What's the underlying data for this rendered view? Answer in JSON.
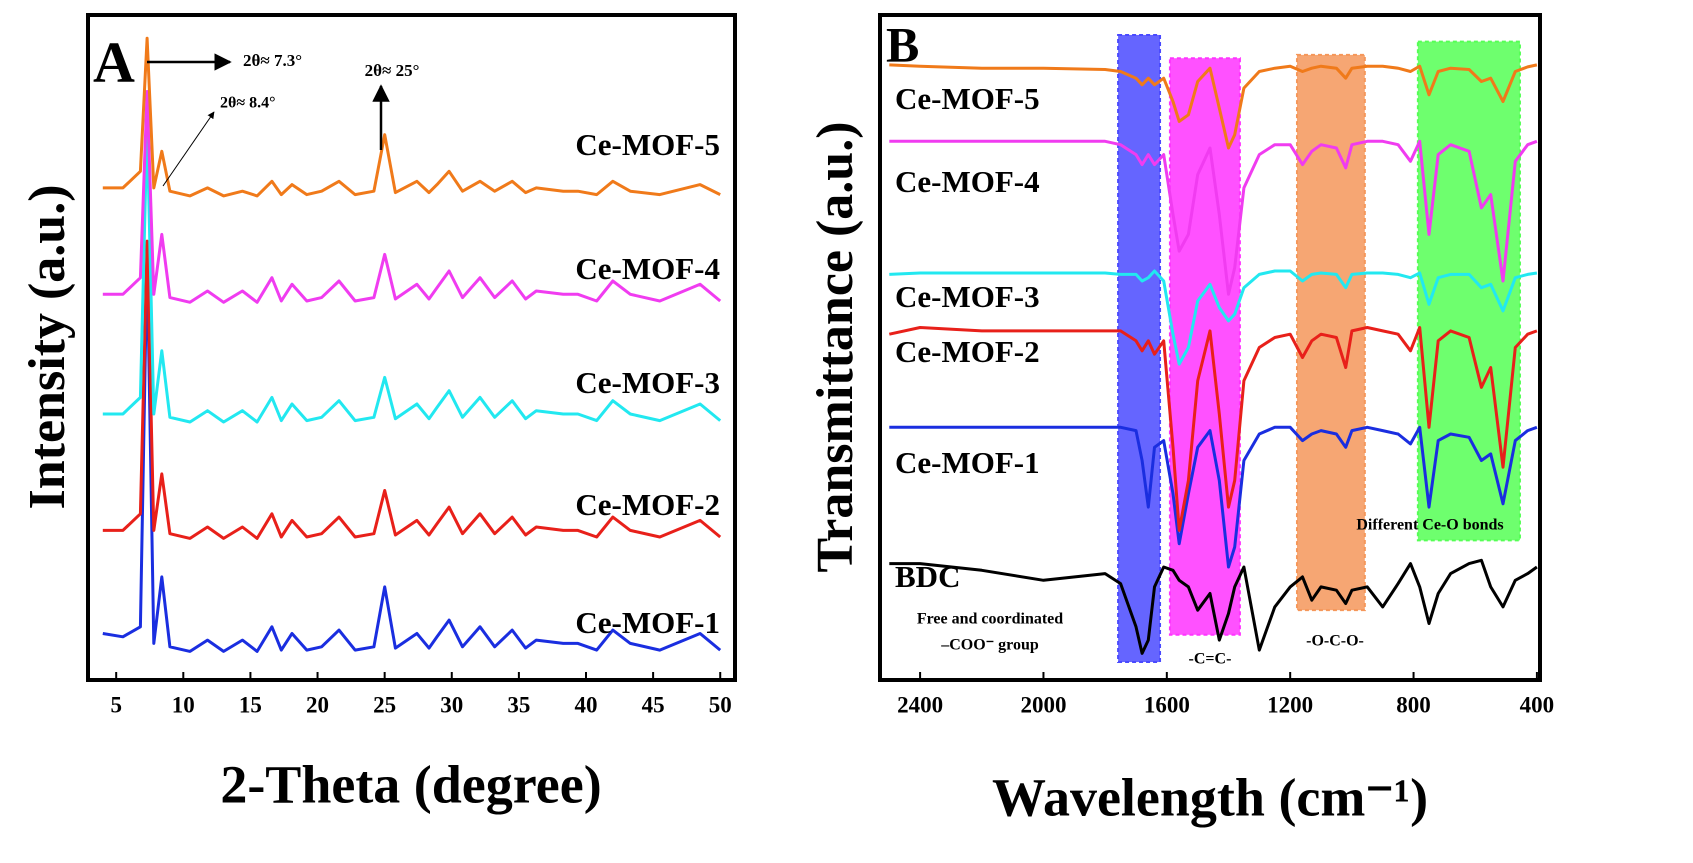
{
  "chart_data": [
    {
      "type": "line",
      "panel_label": "A",
      "x_label": "2-Theta (degree)",
      "y_label": "Intensity (a.u.)",
      "xlim": [
        2.9,
        51.1
      ],
      "xticks": [
        5,
        10,
        15,
        20,
        25,
        30,
        35,
        40,
        45,
        50
      ],
      "ylim": [
        0,
        100
      ],
      "x": [
        4,
        5.5,
        6.8,
        7.3,
        7.8,
        8.4,
        9,
        10.5,
        11.8,
        13,
        14.4,
        15.5,
        16.6,
        17.3,
        18.1,
        19.2,
        20.3,
        21.6,
        22.8,
        24.2,
        25,
        25.8,
        27.4,
        28.3,
        28.9,
        29.8,
        30.8,
        32.1,
        33.2,
        34.5,
        35.5,
        36.3,
        38.3,
        39.4,
        40.8,
        42,
        43.3,
        45.5,
        48.5,
        50
      ],
      "series": [
        {
          "name": "Ce-MOF-1",
          "color": "#1a2ee0",
          "values": [
            7,
            6.5,
            8,
            64,
            5.5,
            15.5,
            5,
            4.3,
            6,
            4.3,
            6,
            4.3,
            8,
            4.5,
            7,
            4.5,
            5,
            7.5,
            4.5,
            5,
            14,
            4.8,
            7,
            4.8,
            6.5,
            9,
            5,
            8,
            5,
            7.5,
            4.8,
            6,
            5.5,
            5.5,
            4.5,
            7.5,
            5.5,
            4.5,
            7,
            4.5
          ]
        },
        {
          "name": "Ce-MOF-2",
          "color": "#e8201a",
          "values": [
            22.5,
            22.5,
            25,
            66,
            22.5,
            31,
            22,
            21.3,
            23,
            21.3,
            23,
            21.3,
            25,
            21.5,
            24,
            21.5,
            22,
            24.5,
            21.5,
            22,
            28.5,
            21.8,
            24,
            21.8,
            23.5,
            26,
            22,
            25,
            22,
            24.5,
            21.8,
            23,
            22.5,
            22.5,
            21.5,
            24.5,
            22.5,
            21.5,
            24,
            21.5
          ]
        },
        {
          "name": "Ce-MOF-3",
          "color": "#22e8f0",
          "values": [
            40,
            40,
            42.5,
            83.5,
            40,
            49.5,
            39.5,
            38.8,
            40.5,
            38.8,
            40.5,
            38.8,
            42.5,
            39,
            41.5,
            39,
            39.5,
            42,
            39,
            39.5,
            45.5,
            39.3,
            41.5,
            39.3,
            41,
            43.5,
            39.5,
            42.5,
            39.5,
            42,
            39.3,
            40.5,
            40,
            40,
            39,
            42,
            40,
            39,
            41.5,
            39
          ]
        },
        {
          "name": "Ce-MOF-4",
          "color": "#f03cf0",
          "values": [
            58,
            58,
            60.5,
            88.5,
            58,
            67,
            57.5,
            56.8,
            58.5,
            56.8,
            58.5,
            56.8,
            60.5,
            57,
            59.5,
            57,
            57.5,
            60,
            57,
            57.5,
            64,
            57.3,
            59.5,
            57.3,
            59,
            61.5,
            57.5,
            60.5,
            57.5,
            60,
            57.3,
            58.5,
            58,
            58,
            57,
            60,
            58,
            57,
            59.5,
            57
          ]
        },
        {
          "name": "Ce-MOF-5",
          "color": "#f07a1a",
          "values": [
            74,
            74,
            76.5,
            96.5,
            74,
            79.5,
            73.5,
            72.8,
            74,
            72.8,
            73.5,
            72.8,
            75,
            73,
            74.5,
            73,
            73.5,
            75,
            73,
            73.5,
            82,
            73.3,
            75,
            73.3,
            74.5,
            76.5,
            73.5,
            75,
            73.5,
            75,
            73.3,
            74,
            73.5,
            73.5,
            73,
            75,
            73.5,
            73,
            74.5,
            73
          ]
        }
      ],
      "annotations": [
        "2θ≈ 7.3°",
        "2θ≈ 8.4°",
        "2θ≈ 25°"
      ]
    },
    {
      "type": "line",
      "panel_label": "B",
      "x_label": "Wavelength (cm⁻¹)",
      "y_label": "Transmittance (a.u.)",
      "xlim": [
        2530,
        390
      ],
      "xticks": [
        2400,
        2000,
        1600,
        1200,
        800,
        400
      ],
      "ylim": [
        0,
        100
      ],
      "x": [
        2500,
        2400,
        2200,
        2000,
        1800,
        1750,
        1700,
        1680,
        1660,
        1640,
        1610,
        1580,
        1560,
        1530,
        1500,
        1460,
        1430,
        1400,
        1380,
        1350,
        1300,
        1250,
        1200,
        1160,
        1130,
        1100,
        1050,
        1020,
        1000,
        950,
        900,
        850,
        810,
        780,
        750,
        720,
        680,
        620,
        580,
        550,
        510,
        470,
        430,
        400
      ],
      "bands": [
        {
          "x": [
            1758,
            1622
          ],
          "y": [
            2.7,
            97
          ],
          "color": "#4a4aff",
          "label": [
            "Free and coordinated",
            "–COO⁻ group"
          ]
        },
        {
          "x": [
            1590,
            1363
          ],
          "y": [
            6.8,
            93.5
          ],
          "color": "#ff33ff",
          "label": [
            "-C=C-"
          ]
        },
        {
          "x": [
            1178,
            958
          ],
          "y": [
            10.5,
            94
          ],
          "color": "#f5975a",
          "label": [
            "-O-C-O-"
          ]
        },
        {
          "x": [
            786,
            455
          ],
          "y": [
            21,
            96
          ],
          "color": "#55ff55",
          "label": [
            "Different Ce-O bonds"
          ]
        }
      ],
      "series": [
        {
          "name": "BDC",
          "color": "#000000",
          "values": [
            17.5,
            17.5,
            16.5,
            15,
            16,
            14.5,
            8,
            4,
            6,
            14,
            17,
            16.5,
            15,
            14,
            10.5,
            13,
            6,
            10,
            14,
            17,
            4.5,
            11,
            14,
            15.5,
            12,
            14,
            13.5,
            11.5,
            13.5,
            14,
            11,
            14.5,
            17.5,
            14,
            8.5,
            13,
            16,
            17.5,
            18,
            14,
            11,
            15,
            16,
            17
          ]
        },
        {
          "name": "Ce-MOF-1",
          "color": "#1a2ee0",
          "values": [
            38,
            38,
            38,
            38,
            38,
            38,
            37.5,
            33,
            26,
            35,
            36,
            28,
            20.5,
            28,
            35,
            37.5,
            30,
            17,
            20,
            33,
            37,
            38,
            38,
            36,
            37,
            37.5,
            37,
            35,
            37.5,
            38,
            37.5,
            37,
            35.5,
            38,
            26,
            36,
            37,
            36.5,
            33,
            34,
            26.5,
            36,
            37.5,
            38
          ]
        },
        {
          "name": "Ce-MOF-2",
          "color": "#e8201a",
          "values": [
            52,
            53,
            52.5,
            52.5,
            52.5,
            52.5,
            51,
            49.5,
            51,
            49,
            51,
            35,
            22.5,
            30,
            45,
            52.5,
            40,
            26,
            30,
            45,
            50,
            51.5,
            52,
            48.5,
            51,
            52,
            51.5,
            47,
            52.5,
            53,
            52.5,
            52,
            49.5,
            53,
            38,
            51,
            52.5,
            51.5,
            44,
            47,
            32,
            50,
            52,
            52.5
          ]
        },
        {
          "name": "Ce-MOF-3",
          "color": "#22e8f0",
          "values": [
            61,
            61.2,
            61.2,
            61.2,
            61.2,
            61,
            61,
            60,
            60.5,
            61.5,
            60,
            52,
            47.5,
            50,
            57,
            59.5,
            56,
            54,
            55,
            59,
            61,
            61.5,
            61.5,
            60,
            61,
            61.2,
            61,
            59,
            61,
            61.2,
            61.2,
            61,
            60.5,
            61.2,
            56.5,
            60.5,
            61,
            61,
            59,
            59.5,
            55.5,
            60.5,
            61,
            61.2
          ]
        },
        {
          "name": "Ce-MOF-4",
          "color": "#f03cf0",
          "values": [
            81,
            81,
            81,
            81,
            81,
            80.5,
            79,
            77.5,
            79,
            77.5,
            79,
            70,
            64.5,
            67,
            76,
            80,
            70,
            58,
            62,
            74,
            79,
            80.5,
            80.5,
            77.5,
            79.5,
            80.5,
            80,
            77,
            80.5,
            81,
            81,
            80.5,
            78,
            81,
            67,
            79,
            80.5,
            79.5,
            71,
            73,
            60,
            78,
            80.5,
            81
          ]
        },
        {
          "name": "Ce-MOF-5",
          "color": "#f07a1a",
          "values": [
            92.5,
            92.3,
            92,
            92,
            91.8,
            91.5,
            90.5,
            89.5,
            90.5,
            89.5,
            90.5,
            87,
            84,
            85,
            90,
            92,
            86,
            80,
            82,
            89,
            91.5,
            92,
            92.3,
            91.5,
            92,
            92.3,
            92,
            90.5,
            92,
            92.3,
            92.3,
            92,
            91.5,
            92.3,
            88,
            91.5,
            92,
            91.8,
            90,
            90.5,
            87,
            91.5,
            92.2,
            92.5
          ]
        }
      ]
    }
  ]
}
